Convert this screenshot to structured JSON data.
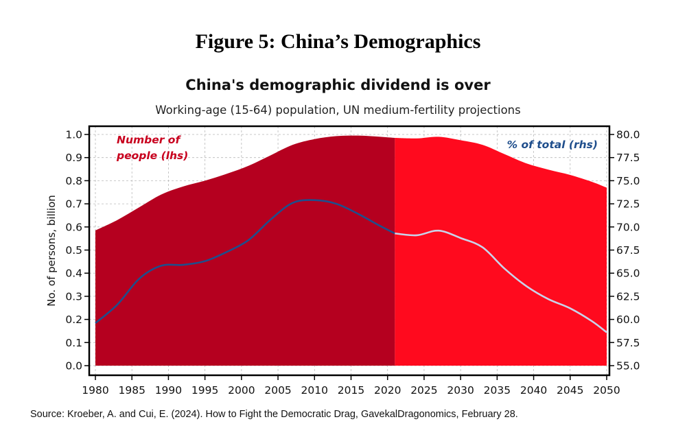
{
  "figure_caption": "Figure 5: China’s Demographics",
  "source_note": "Source: Kroeber, A. and Cui, E. (2024). How to Fight the Democratic Drag, GavekalDragonomics, February 28.",
  "colors": {
    "historical_area": "#b5001f",
    "projection_area": "#ff0a1e",
    "historical_line": "#1f4e8c",
    "projection_line": "#c9d3ea",
    "area_label": "#c8001e",
    "line_label": "#1f4e8c"
  },
  "chart_data": {
    "type": "area",
    "title": "China's demographic dividend is over",
    "subtitle": "Working-age (15-64) population, UN medium-fertility projections",
    "ylabel_left": "No. of persons, billion",
    "xlim": [
      1980,
      2050
    ],
    "ylim_left": [
      0,
      1
    ],
    "ylim_right": [
      55,
      80
    ],
    "x_ticks": [
      1980,
      1985,
      1990,
      1995,
      2000,
      2005,
      2010,
      2015,
      2020,
      2025,
      2030,
      2035,
      2040,
      2045,
      2050
    ],
    "y_ticks_left": [
      "0.0",
      "0.1",
      "0.2",
      "0.3",
      "0.4",
      "0.5",
      "0.6",
      "0.7",
      "0.8",
      "0.9",
      "1.0"
    ],
    "y_ticks_right": [
      "55.0",
      "57.5",
      "60.0",
      "62.5",
      "65.0",
      "67.5",
      "70.0",
      "72.5",
      "75.0",
      "77.5",
      "80.0"
    ],
    "grid": true,
    "projection_start": 2021,
    "series": [
      {
        "name": "Number of people (lhs)",
        "axis": "left",
        "kind": "area",
        "x": [
          1980,
          1983,
          1986,
          1989,
          1992,
          1995,
          1998,
          2001,
          2004,
          2007,
          2010,
          2013,
          2016,
          2019,
          2021,
          2024,
          2027,
          2030,
          2033,
          2036,
          2039,
          2042,
          2045,
          2048,
          2050
        ],
        "values": [
          0.585,
          0.63,
          0.685,
          0.74,
          0.775,
          0.8,
          0.83,
          0.865,
          0.91,
          0.955,
          0.98,
          0.993,
          0.995,
          0.99,
          0.985,
          0.983,
          0.99,
          0.975,
          0.955,
          0.915,
          0.875,
          0.848,
          0.825,
          0.795,
          0.77
        ]
      },
      {
        "name": "% of total (rhs)",
        "axis": "right",
        "kind": "line",
        "x": [
          1980,
          1983,
          1986,
          1989,
          1992,
          1995,
          1998,
          2001,
          2004,
          2007,
          2010,
          2013,
          2016,
          2019,
          2021,
          2024,
          2027,
          2030,
          2033,
          2036,
          2039,
          2042,
          2045,
          2048,
          2050
        ],
        "values": [
          59.6,
          61.6,
          64.4,
          65.8,
          65.9,
          66.3,
          67.3,
          68.6,
          70.8,
          72.6,
          72.9,
          72.5,
          71.4,
          70.1,
          69.3,
          69.1,
          69.6,
          68.8,
          67.8,
          65.5,
          63.6,
          62.2,
          61.2,
          59.8,
          58.6
        ]
      }
    ],
    "area_label": [
      "Number of",
      "people (lhs)"
    ],
    "line_label": "% of total (rhs)"
  }
}
